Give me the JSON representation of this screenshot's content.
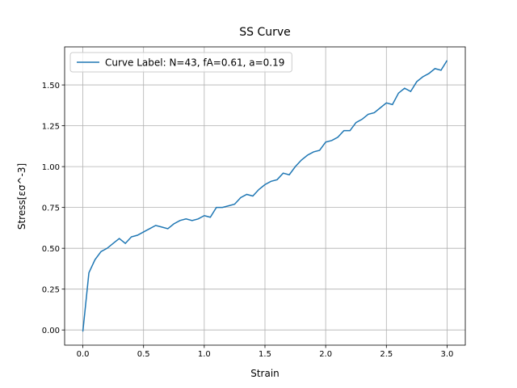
{
  "chart_data": {
    "type": "line",
    "title": "SS Curve",
    "x_label": "Strain",
    "y_label": "Stress[εσ^-3]",
    "x": [
      0,
      0.05,
      0.1,
      0.15,
      0.2,
      0.25,
      0.3,
      0.35,
      0.4,
      0.45,
      0.5,
      0.55,
      0.6,
      0.65,
      0.7,
      0.75,
      0.8,
      0.85,
      0.9,
      0.95,
      1.0,
      1.05,
      1.1,
      1.15,
      1.2,
      1.25,
      1.3,
      1.35,
      1.4,
      1.45,
      1.5,
      1.55,
      1.6,
      1.65,
      1.7,
      1.75,
      1.8,
      1.85,
      1.9,
      1.95,
      2.0,
      2.05,
      2.1,
      2.15,
      2.2,
      2.25,
      2.3,
      2.35,
      2.4,
      2.45,
      2.5,
      2.55,
      2.6,
      2.65,
      2.7,
      2.75,
      2.8,
      2.85,
      2.9,
      2.95,
      3.0
    ],
    "series": [
      {
        "name": "Curve Label: N=43, fA=0.61, a=0.19",
        "color": "#1f77b4",
        "values": [
          -0.01,
          0.35,
          0.43,
          0.48,
          0.5,
          0.53,
          0.56,
          0.53,
          0.57,
          0.58,
          0.6,
          0.62,
          0.64,
          0.63,
          0.62,
          0.65,
          0.67,
          0.68,
          0.67,
          0.68,
          0.7,
          0.69,
          0.75,
          0.75,
          0.76,
          0.77,
          0.81,
          0.83,
          0.82,
          0.86,
          0.89,
          0.91,
          0.92,
          0.96,
          0.95,
          1.0,
          1.04,
          1.07,
          1.09,
          1.1,
          1.15,
          1.16,
          1.18,
          1.22,
          1.22,
          1.27,
          1.29,
          1.32,
          1.33,
          1.36,
          1.39,
          1.38,
          1.45,
          1.48,
          1.46,
          1.52,
          1.55,
          1.57,
          1.6,
          1.59,
          1.65
        ]
      }
    ],
    "xlim": [
      -0.15,
      3.15
    ],
    "xticks": [
      {
        "value": 0,
        "label": "0.0"
      },
      0.5,
      {
        "value": 1,
        "label": "1.0"
      },
      1.5,
      {
        "value": 2,
        "label": "2.0"
      },
      2.5,
      {
        "value": 3,
        "label": "3.0"
      }
    ],
    "ylim": [
      -0.093,
      1.733
    ],
    "yticks": [
      {
        "value": 0,
        "label": "0.00"
      },
      {
        "value": 0.25,
        "label": "0.25"
      },
      {
        "value": 0.5,
        "label": "0.50"
      },
      {
        "value": 0.75,
        "label": "0.75"
      },
      {
        "value": 1,
        "label": "1.00"
      },
      {
        "value": 1.25,
        "label": "1.25"
      },
      {
        "value": 1.5,
        "label": "1.50"
      }
    ],
    "grid": true,
    "legend": "upper left"
  }
}
